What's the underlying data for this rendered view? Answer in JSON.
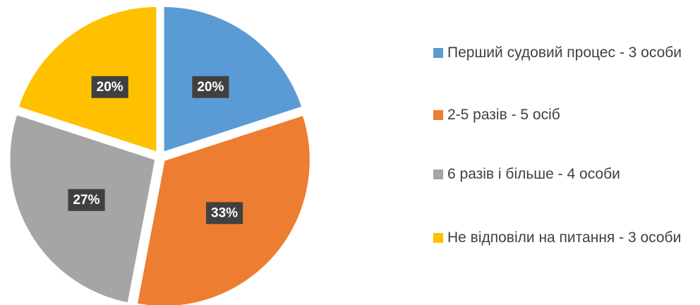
{
  "chart_data": {
    "type": "pie",
    "categories": [
      "Перший судовий процес - 3 особи",
      "2-5 разів - 5 осіб",
      "6 разів і більше - 4 особи",
      "Не відповіли на питання - 3 особи"
    ],
    "values": [
      20,
      33,
      27,
      20
    ],
    "value_labels": [
      "20%",
      "33%",
      "27%",
      "20%"
    ],
    "colors": [
      "#5b9bd5",
      "#ed7d31",
      "#a5a5a5",
      "#ffc000"
    ],
    "legend": "right"
  }
}
